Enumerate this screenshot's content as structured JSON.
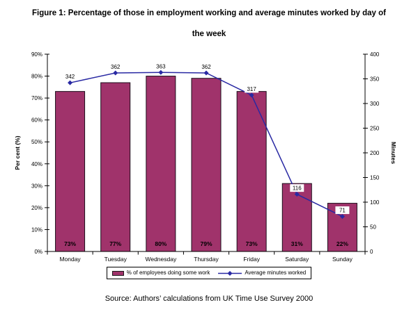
{
  "title": {
    "line1": "Figure 1: Percentage of those in employment working and average minutes worked by day of",
    "line2": "the week"
  },
  "source": "Source: Authors’ calculations from UK Time Use Survey 2000",
  "chart_data": {
    "type": "combo-bar-line",
    "categories": [
      "Monday",
      "Tuesday",
      "Wednesday",
      "Thursday",
      "Friday",
      "Saturday",
      "Sunday"
    ],
    "series": [
      {
        "name": "% of employees doing some work",
        "type": "bar",
        "axis": "left",
        "color": "#A0336B",
        "border_color": "#1a0d1a",
        "values": [
          73,
          77,
          80,
          79,
          73,
          31,
          22
        ],
        "data_labels": [
          "73%",
          "77%",
          "80%",
          "79%",
          "73%",
          "31%",
          "22%"
        ]
      },
      {
        "name": "Average minutes worked",
        "type": "line",
        "axis": "right",
        "color": "#2929A3",
        "marker": "diamond",
        "values": [
          342,
          362,
          363,
          362,
          317,
          116,
          71
        ],
        "data_labels": [
          "342",
          "362",
          "363",
          "362",
          "317",
          "116",
          "71"
        ]
      }
    ],
    "left_axis": {
      "title": "Per cent (%)",
      "min": 0,
      "max": 90,
      "step": 10,
      "tick_labels": [
        "0%",
        "10%",
        "20%",
        "30%",
        "40%",
        "50%",
        "60%",
        "70%",
        "80%",
        "90%"
      ]
    },
    "right_axis": {
      "title": "Minutes",
      "min": 0,
      "max": 400,
      "step": 50,
      "tick_labels": [
        "0",
        "50",
        "100",
        "150",
        "200",
        "250",
        "300",
        "350",
        "400"
      ]
    },
    "grid": false,
    "legend_position": "bottom"
  }
}
